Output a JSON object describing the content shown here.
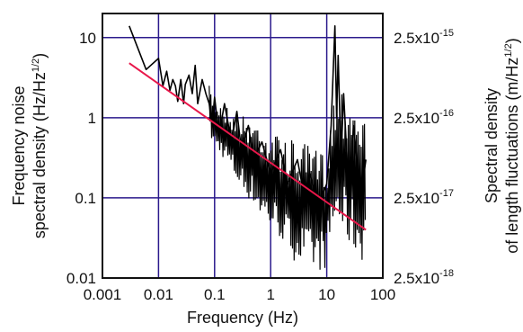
{
  "chart_data": {
    "type": "line",
    "title": "",
    "xlabel": "Frequency (Hz)",
    "ylabel_left": {
      "line1": "Frequency noise",
      "line2_prefix": "spectral density (Hz/Hz",
      "line2_sup": "1/2",
      "line2_suffix": ")"
    },
    "ylabel_right": {
      "line1": "Spectral density",
      "line2_prefix": "of length fluctuations (m/Hz",
      "line2_sup": "1/2",
      "line2_suffix": ")"
    },
    "x_scale": "log",
    "y_scale": "log",
    "xlim": [
      0.001,
      100
    ],
    "ylim": [
      0.01,
      20
    ],
    "grid": true,
    "x_ticks": [
      {
        "value": 0.001,
        "label": "0.001"
      },
      {
        "value": 0.01,
        "label": "0.01"
      },
      {
        "value": 0.1,
        "label": "0.1"
      },
      {
        "value": 1,
        "label": "1"
      },
      {
        "value": 10,
        "label": "10"
      },
      {
        "value": 100,
        "label": "100"
      }
    ],
    "y_ticks_left": [
      {
        "value": 0.01,
        "label": "0.01"
      },
      {
        "value": 0.1,
        "label": "0.1"
      },
      {
        "value": 1,
        "label": "1"
      },
      {
        "value": 10,
        "label": "10"
      }
    ],
    "y_ticks_right": [
      {
        "value": 0.01,
        "mantissa": "2.5x10",
        "exp": "-18"
      },
      {
        "value": 0.1,
        "mantissa": "2.5x10",
        "exp": "-17"
      },
      {
        "value": 1,
        "mantissa": "2.5x10",
        "exp": "-16"
      },
      {
        "value": 10,
        "mantissa": "2.5x10",
        "exp": "-15"
      }
    ],
    "series": [
      {
        "color": "#000000",
        "x": [
          0.003,
          0.006,
          0.01,
          0.012,
          0.014,
          0.016,
          0.018,
          0.02,
          0.022,
          0.025,
          0.028,
          0.03,
          0.035,
          0.04,
          0.045,
          0.05,
          0.06,
          0.07,
          0.08,
          0.09,
          0.1,
          0.12,
          0.15,
          0.2,
          0.25,
          0.3,
          0.4,
          0.5,
          0.7,
          1,
          1.5,
          2,
          3,
          4,
          5,
          7,
          10,
          12,
          14,
          15,
          16,
          18,
          20,
          25,
          30,
          40,
          50
        ],
        "y": [
          14,
          4.0,
          5.5,
          2.5,
          3.8,
          2.2,
          3.0,
          2.5,
          1.6,
          3.0,
          1.5,
          2.6,
          3.4,
          2.0,
          4.5,
          1.5,
          3.0,
          2.0,
          1.5,
          0.8,
          1.8,
          0.6,
          1.5,
          0.5,
          1.2,
          0.4,
          0.8,
          0.3,
          0.5,
          0.2,
          0.4,
          0.15,
          0.3,
          0.1,
          0.2,
          0.08,
          0.15,
          0.8,
          14,
          1.0,
          6.0,
          0.3,
          2.0,
          0.1,
          0.8,
          0.1,
          0.3
        ],
        "band_x": [
          0.08,
          0.1,
          0.15,
          0.2,
          0.3,
          0.5,
          0.7,
          1,
          1.5,
          2,
          3,
          5,
          7,
          10,
          11,
          12,
          14,
          16,
          20,
          30,
          40,
          50
        ],
        "band_upper": [
          2.5,
          1.8,
          1.5,
          1.3,
          1.1,
          1.0,
          0.9,
          0.7,
          0.6,
          0.55,
          0.5,
          0.45,
          0.4,
          0.4,
          0.6,
          1.2,
          2.5,
          3.0,
          2.5,
          2.0,
          1.5,
          1.0
        ],
        "band_lower": [
          0.6,
          0.4,
          0.3,
          0.2,
          0.12,
          0.08,
          0.05,
          0.04,
          0.03,
          0.02,
          0.015,
          0.012,
          0.012,
          0.013,
          0.02,
          0.03,
          0.04,
          0.04,
          0.03,
          0.02,
          0.015,
          0.02
        ]
      },
      {
        "color": "#e8174a",
        "x": [
          0.003,
          50
        ],
        "y": [
          4.8,
          0.04
        ]
      }
    ]
  },
  "colors": {
    "grid": "#2b1a8c",
    "frame": "#111111",
    "data": "#000000",
    "fit": "#e8174a"
  }
}
